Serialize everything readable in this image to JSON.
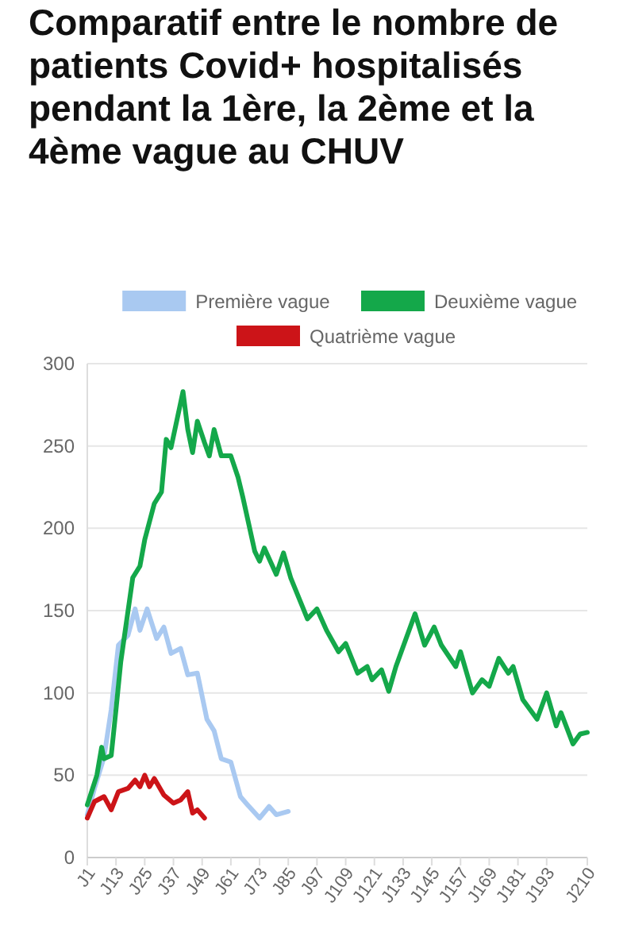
{
  "chart_data": {
    "type": "line",
    "title": "Comparatif entre le nombre de patients Covid+ hospitalisés pendant la 1ère, la 2ème et la 4ème vague au CHUV",
    "categories": [
      "J1",
      null,
      null,
      null,
      null,
      null,
      null,
      null,
      null,
      null,
      null,
      null,
      "J13",
      null,
      null,
      null,
      null,
      null,
      null,
      null,
      null,
      null,
      null,
      null,
      "J25",
      null,
      null,
      null,
      null,
      null,
      null,
      null,
      null,
      null,
      null,
      null,
      "J37",
      null,
      null,
      null,
      null,
      null,
      null,
      null,
      null,
      null,
      null,
      null,
      "J49",
      null,
      null,
      null,
      null,
      null,
      null,
      null,
      null,
      null,
      null,
      null,
      "J61",
      null,
      null,
      null,
      null,
      null,
      null,
      null,
      null,
      null,
      null,
      null,
      "J73",
      null,
      null,
      null,
      null,
      null,
      null,
      null,
      null,
      null,
      null,
      null,
      "J85",
      null,
      null,
      null,
      null,
      null,
      null,
      null,
      null,
      null,
      null,
      null,
      "J97",
      null,
      null,
      null,
      null,
      null,
      null,
      null,
      null,
      null,
      null,
      null,
      "J109",
      null,
      null,
      null,
      null,
      null,
      null,
      null,
      null,
      null,
      null,
      null,
      "J121",
      null,
      null,
      null,
      null,
      null,
      null,
      null,
      null,
      null,
      null,
      null,
      "J133",
      null,
      null,
      null,
      null,
      null,
      null,
      null,
      null,
      null,
      null,
      null,
      "J145",
      null,
      null,
      null,
      null,
      null,
      null,
      null,
      null,
      null,
      null,
      null,
      "J157",
      null,
      null,
      null,
      null,
      null,
      null,
      null,
      null,
      null,
      null,
      null,
      "J169",
      null,
      null,
      null,
      null,
      null,
      null,
      null,
      null,
      null,
      null,
      null,
      "J181",
      null,
      null,
      null,
      null,
      null,
      null,
      null,
      null,
      null,
      null,
      null,
      "J193",
      null,
      null,
      null,
      null,
      null,
      null,
      null,
      null,
      null,
      null,
      null,
      null,
      null,
      null,
      null,
      null,
      "J210"
    ],
    "ylim": [
      0,
      300
    ],
    "yticks": [
      0,
      50,
      100,
      150,
      200,
      250,
      300
    ],
    "grid": "y",
    "legend": "top",
    "marker": "none",
    "line_style": "solid",
    "series": [
      {
        "name": "Première vague",
        "color": "#a9c9f1",
        "values": [
          26,
          null,
          null,
          42,
          null,
          null,
          null,
          61,
          null,
          null,
          90,
          null,
          null,
          129,
          null,
          null,
          null,
          135,
          null,
          null,
          151,
          null,
          138,
          null,
          null,
          151,
          null,
          null,
          null,
          133,
          null,
          null,
          140,
          null,
          null,
          124,
          null,
          null,
          null,
          127,
          null,
          null,
          111,
          null,
          null,
          null,
          112,
          null,
          null,
          null,
          84,
          null,
          null,
          77,
          null,
          null,
          60,
          null,
          null,
          null,
          58,
          null,
          null,
          null,
          37,
          null,
          null,
          32,
          null,
          null,
          null,
          null,
          24,
          null,
          null,
          null,
          31,
          null,
          null,
          26,
          null,
          null,
          null,
          null,
          28,
          null,
          null,
          null,
          null,
          null,
          null,
          null,
          null,
          null,
          null,
          null,
          null,
          null,
          null,
          null,
          null,
          null,
          null,
          null,
          null,
          null,
          null,
          null,
          null,
          null,
          null,
          null,
          null,
          null,
          null,
          null,
          null,
          null,
          null,
          null,
          null,
          null,
          null,
          null,
          null,
          null,
          null,
          null,
          null,
          null,
          null,
          null,
          null,
          null,
          null,
          null,
          null,
          null,
          null,
          null,
          null,
          null,
          null,
          null,
          null,
          null,
          null,
          null,
          null,
          null,
          null,
          null,
          null,
          null,
          null,
          null,
          null,
          null,
          null,
          null,
          null,
          null,
          null,
          null,
          null,
          null,
          null,
          null,
          null,
          null,
          null,
          null,
          null,
          null,
          null,
          null,
          null,
          null,
          null,
          null,
          null,
          null,
          null,
          null,
          null,
          null,
          null,
          null,
          null,
          null,
          null,
          null,
          null,
          null,
          null,
          null,
          null,
          null,
          null,
          null,
          null,
          null,
          null,
          null,
          null,
          null,
          null,
          null,
          null,
          null
        ]
      },
      {
        "name": "Deuxième vague",
        "color": "#14a84a",
        "values": [
          32,
          null,
          null,
          null,
          50,
          null,
          67,
          60,
          null,
          null,
          62,
          null,
          90,
          null,
          119,
          null,
          null,
          null,
          null,
          170,
          null,
          null,
          177,
          null,
          193,
          null,
          null,
          null,
          215,
          null,
          null,
          222,
          null,
          254,
          null,
          249,
          null,
          null,
          null,
          null,
          283,
          null,
          260,
          null,
          246,
          null,
          265,
          null,
          null,
          252,
          null,
          244,
          null,
          260,
          null,
          null,
          244,
          null,
          null,
          null,
          244,
          null,
          null,
          231,
          null,
          219,
          null,
          null,
          null,
          null,
          186,
          null,
          180,
          null,
          188,
          null,
          null,
          null,
          null,
          172,
          null,
          null,
          185,
          null,
          null,
          170,
          null,
          null,
          null,
          null,
          null,
          null,
          145,
          null,
          null,
          null,
          151,
          null,
          null,
          null,
          138,
          null,
          null,
          null,
          null,
          125,
          null,
          null,
          130,
          null,
          null,
          null,
          null,
          112,
          null,
          null,
          null,
          116,
          null,
          108,
          null,
          null,
          null,
          114,
          null,
          null,
          101,
          null,
          null,
          116,
          null,
          null,
          null,
          132,
          null,
          null,
          null,
          148,
          null,
          null,
          null,
          129,
          null,
          null,
          null,
          140,
          null,
          null,
          129,
          null,
          null,
          null,
          null,
          null,
          116,
          null,
          125,
          null,
          null,
          null,
          null,
          100,
          null,
          null,
          null,
          108,
          null,
          null,
          104,
          null,
          null,
          null,
          121,
          null,
          null,
          null,
          112,
          null,
          116,
          null,
          null,
          null,
          96,
          null,
          null,
          null,
          null,
          null,
          84,
          null,
          null,
          null,
          100,
          null,
          null,
          null,
          80,
          null,
          88,
          null,
          null,
          null,
          null,
          69,
          null,
          null,
          75,
          null,
          null,
          76
        ]
      },
      {
        "name": "Quatrième vague",
        "color": "#cc1418",
        "values": [
          24,
          null,
          null,
          34,
          null,
          null,
          null,
          37,
          null,
          null,
          29,
          null,
          null,
          40,
          null,
          null,
          null,
          42,
          null,
          null,
          47,
          null,
          43,
          null,
          50,
          null,
          43,
          null,
          48,
          null,
          null,
          null,
          38,
          null,
          null,
          null,
          33,
          null,
          null,
          35,
          null,
          null,
          40,
          null,
          27,
          null,
          29,
          null,
          null,
          24,
          null,
          null,
          null,
          null,
          null,
          null,
          null,
          null,
          null,
          null,
          null,
          null,
          null,
          null,
          null,
          null,
          null,
          null,
          null,
          null,
          null,
          null,
          null,
          null,
          null,
          null,
          null,
          null,
          null,
          null,
          null,
          null,
          null,
          null,
          null,
          null,
          null,
          null,
          null,
          null,
          null,
          null,
          null,
          null,
          null,
          null,
          null,
          null,
          null,
          null,
          null,
          null,
          null,
          null,
          null,
          null,
          null,
          null,
          null,
          null,
          null,
          null,
          null,
          null,
          null,
          null,
          null,
          null,
          null,
          null,
          null,
          null,
          null,
          null,
          null,
          null,
          null,
          null,
          null,
          null,
          null,
          null,
          null,
          null,
          null,
          null,
          null,
          null,
          null,
          null,
          null,
          null,
          null,
          null,
          null,
          null,
          null,
          null,
          null,
          null,
          null,
          null,
          null,
          null,
          null,
          null,
          null,
          null,
          null,
          null,
          null,
          null,
          null,
          null,
          null,
          null,
          null,
          null,
          null,
          null,
          null,
          null,
          null,
          null,
          null,
          null,
          null,
          null,
          null,
          null,
          null,
          null,
          null,
          null,
          null,
          null,
          null,
          null,
          null,
          null,
          null,
          null,
          null,
          null,
          null,
          null,
          null,
          null,
          null,
          null,
          null,
          null,
          null,
          null,
          null,
          null,
          null,
          null,
          null,
          null
        ]
      }
    ]
  }
}
